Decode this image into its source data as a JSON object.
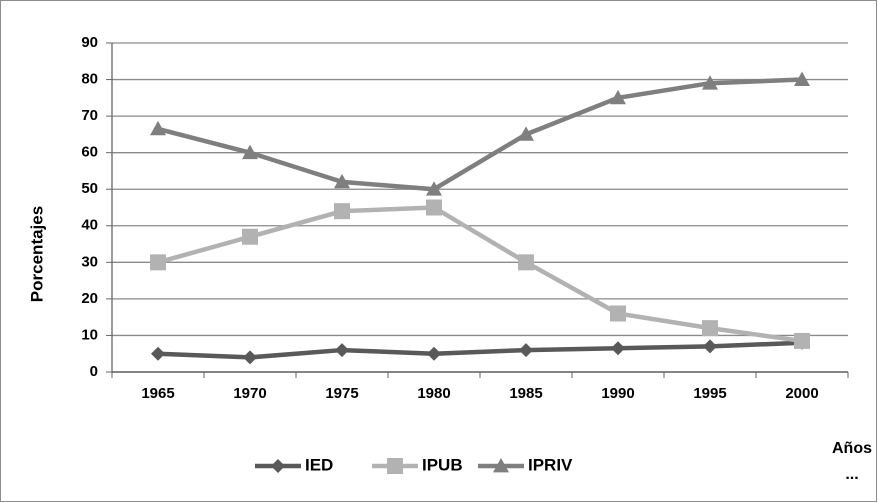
{
  "chart_data": {
    "type": "line",
    "y_label": "Porcentajes",
    "x_label": "Años\n...",
    "categories": [
      "1965",
      "1970",
      "1975",
      "1980",
      "1985",
      "1990",
      "1995",
      "2000"
    ],
    "series": [
      {
        "name": "IED",
        "color": "#595959",
        "marker": "diamond",
        "values": [
          5,
          4,
          6,
          5,
          6,
          6.5,
          7,
          8
        ]
      },
      {
        "name": "IPUB",
        "color": "#b2b2b2",
        "marker": "square",
        "values": [
          30,
          37,
          44,
          45,
          30,
          16,
          12,
          8.5
        ]
      },
      {
        "name": "IPRIV",
        "color": "#7f7f7f",
        "marker": "triangle",
        "values": [
          66.5,
          60,
          52,
          50,
          65,
          75,
          79,
          80
        ]
      }
    ],
    "ylim": [
      0,
      90
    ],
    "yticks": [
      0,
      10,
      20,
      30,
      40,
      50,
      60,
      70,
      80,
      90
    ],
    "grid": true,
    "legend": "bottom"
  }
}
